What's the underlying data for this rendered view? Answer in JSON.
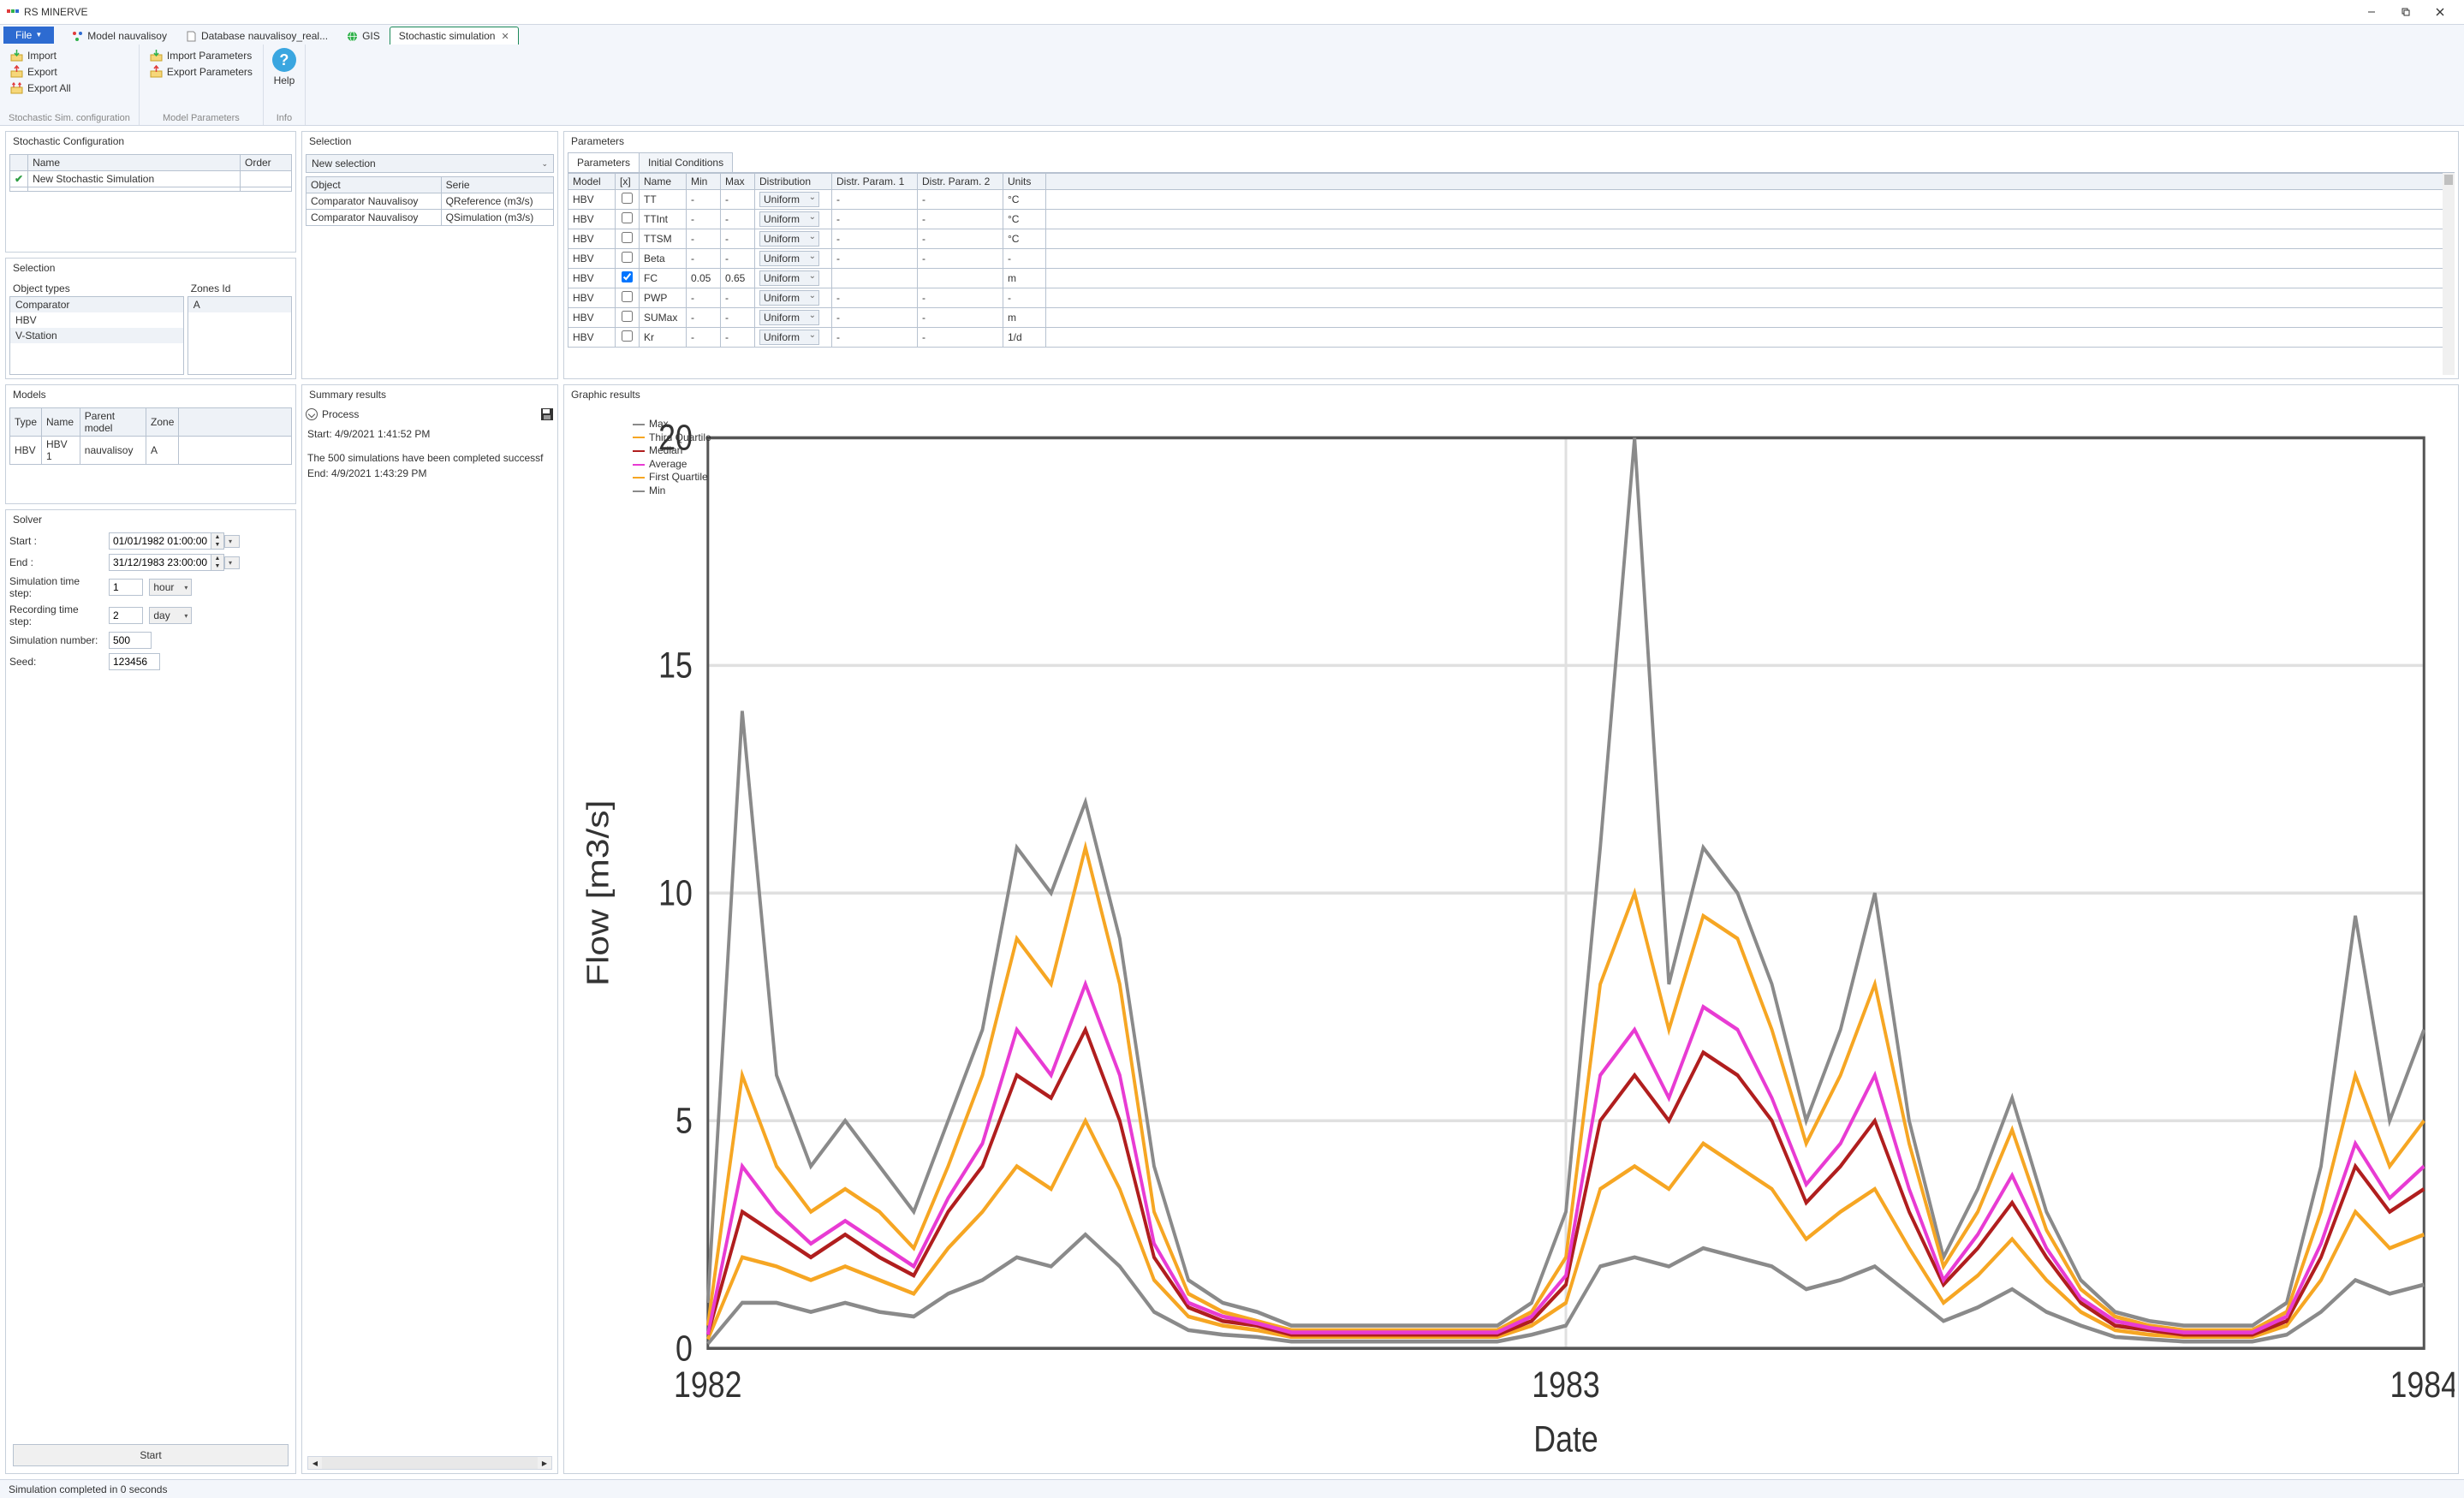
{
  "window": {
    "title": "RS MINERVE"
  },
  "file_menu": {
    "label": "File"
  },
  "tabs": [
    {
      "label": "Model nauvalisoy",
      "active": false
    },
    {
      "label": "Database nauvalisoy_real...",
      "active": false
    },
    {
      "label": "GIS",
      "active": false
    },
    {
      "label": "Stochastic simulation",
      "active": true,
      "closable": true
    }
  ],
  "ribbon": {
    "group1": {
      "items": [
        "Import",
        "Export",
        "Export All"
      ],
      "label": "Stochastic Sim. configuration"
    },
    "group2": {
      "items": [
        "Import Parameters",
        "Export Parameters"
      ],
      "label": "Model Parameters"
    },
    "group3": {
      "help": "Help",
      "label": "Info"
    }
  },
  "stochastic_config": {
    "title": "Stochastic Configuration",
    "headers": [
      "Name",
      "Order"
    ],
    "rows": [
      {
        "checked": true,
        "name": "New Stochastic Simulation",
        "order": ""
      }
    ]
  },
  "selection_panel": {
    "title": "Selection",
    "obj_label": "Object types",
    "zone_label": "Zones Id",
    "objects": [
      "Comparator",
      "HBV",
      "V-Station"
    ],
    "zones": [
      "A"
    ]
  },
  "models_panel": {
    "title": "Models",
    "headers": [
      "Type",
      "Name",
      "Parent model",
      "Zone"
    ],
    "row": {
      "type": "HBV",
      "name": "HBV 1",
      "parent": "nauvalisoy",
      "zone": "A"
    }
  },
  "solver": {
    "title": "Solver",
    "start_label": "Start :",
    "start_val": "01/01/1982 01:00:00",
    "end_label": "End :",
    "end_val": "31/12/1983 23:00:00",
    "sim_step_label": "Simulation time step:",
    "sim_step_val": "1",
    "sim_step_unit": "hour",
    "rec_step_label": "Recording time step:",
    "rec_step_val": "2",
    "rec_step_unit": "day",
    "sim_num_label": "Simulation number:",
    "sim_num_val": "500",
    "seed_label": "Seed:",
    "seed_val": "123456",
    "start_btn": "Start"
  },
  "selection_mid": {
    "title": "Selection",
    "combo": "New selection",
    "headers": [
      "Object",
      "Serie"
    ],
    "rows": [
      {
        "obj": "Comparator Nauvalisoy",
        "serie": "QReference (m3/s)"
      },
      {
        "obj": "Comparator Nauvalisoy",
        "serie": "QSimulation (m3/s)"
      }
    ]
  },
  "summary": {
    "title": "Summary results",
    "process": "Process",
    "line1": "Start: 4/9/2021 1:41:52 PM",
    "line2": "The 500 simulations have been completed successf",
    "line3": "End: 4/9/2021 1:43:29 PM"
  },
  "parameters": {
    "title": "Parameters",
    "tabs": [
      "Parameters",
      "Initial Conditions"
    ],
    "headers": [
      "Model",
      "[x]",
      "Name",
      "Min",
      "Max",
      "Distribution",
      "Distr. Param. 1",
      "Distr. Param. 2",
      "Units"
    ],
    "rows": [
      {
        "model": "HBV",
        "x": false,
        "name": "TT",
        "min": "-",
        "max": "-",
        "dist": "Uniform",
        "p1": "-",
        "p2": "-",
        "units": "°C"
      },
      {
        "model": "HBV",
        "x": false,
        "name": "TTInt",
        "min": "-",
        "max": "-",
        "dist": "Uniform",
        "p1": "-",
        "p2": "-",
        "units": "°C"
      },
      {
        "model": "HBV",
        "x": false,
        "name": "TTSM",
        "min": "-",
        "max": "-",
        "dist": "Uniform",
        "p1": "-",
        "p2": "-",
        "units": "°C"
      },
      {
        "model": "HBV",
        "x": false,
        "name": "Beta",
        "min": "-",
        "max": "-",
        "dist": "Uniform",
        "p1": "-",
        "p2": "-",
        "units": "-"
      },
      {
        "model": "HBV",
        "x": true,
        "name": "FC",
        "min": "0.05",
        "max": "0.65",
        "dist": "Uniform",
        "p1": "",
        "p2": "",
        "units": "m"
      },
      {
        "model": "HBV",
        "x": false,
        "name": "PWP",
        "min": "-",
        "max": "-",
        "dist": "Uniform",
        "p1": "-",
        "p2": "-",
        "units": "-"
      },
      {
        "model": "HBV",
        "x": false,
        "name": "SUMax",
        "min": "-",
        "max": "-",
        "dist": "Uniform",
        "p1": "-",
        "p2": "-",
        "units": "m"
      },
      {
        "model": "HBV",
        "x": false,
        "name": "Kr",
        "min": "-",
        "max": "-",
        "dist": "Uniform",
        "p1": "-",
        "p2": "-",
        "units": "1/d"
      }
    ]
  },
  "graphic": {
    "title": "Graphic results",
    "ylabel": "Flow [m3/s]",
    "xlabel": "Date",
    "xticks": [
      "1982",
      "1983",
      "1984"
    ],
    "yticks": [
      0,
      5,
      10,
      15,
      20
    ],
    "ylim": [
      0,
      20
    ],
    "legend": [
      {
        "label": "Max",
        "color": "#8a8a8a"
      },
      {
        "label": "Third Quartile",
        "color": "#f6a623"
      },
      {
        "label": "Median",
        "color": "#b01e1e"
      },
      {
        "label": "Average",
        "color": "#e83bd3"
      },
      {
        "label": "First Quartile",
        "color": "#f6a623"
      },
      {
        "label": "Min",
        "color": "#8a8a8a"
      }
    ],
    "series": {
      "x": [
        0,
        2,
        4,
        6,
        8,
        10,
        12,
        14,
        16,
        18,
        20,
        22,
        24,
        26,
        28,
        30,
        32,
        34,
        36,
        38,
        40,
        42,
        44,
        46,
        48,
        50,
        52,
        54,
        56,
        58,
        60,
        62,
        64,
        66,
        68,
        70,
        72,
        74,
        76,
        78,
        80,
        82,
        84,
        86,
        88,
        90,
        92,
        94,
        96,
        98,
        100
      ],
      "max": [
        1,
        14,
        6,
        4,
        5,
        4,
        3,
        5,
        7,
        11,
        10,
        12,
        9,
        4,
        1.5,
        1,
        0.8,
        0.5,
        0.5,
        0.5,
        0.5,
        0.5,
        0.5,
        0.5,
        1,
        3,
        11,
        20,
        8,
        11,
        10,
        8,
        5,
        7,
        10,
        5,
        2,
        3.5,
        5.5,
        3,
        1.5,
        0.8,
        0.6,
        0.5,
        0.5,
        0.5,
        1,
        4,
        9.5,
        5,
        7
      ],
      "q3": [
        0.5,
        6,
        4,
        3,
        3.5,
        3,
        2.2,
        4,
        6,
        9,
        8,
        11,
        8,
        3,
        1.2,
        0.8,
        0.6,
        0.4,
        0.4,
        0.4,
        0.4,
        0.4,
        0.4,
        0.4,
        0.8,
        2,
        8,
        10,
        7,
        9.5,
        9,
        7,
        4.5,
        6,
        8,
        4.5,
        1.8,
        3,
        4.8,
        2.6,
        1.3,
        0.7,
        0.5,
        0.4,
        0.4,
        0.4,
        0.8,
        3,
        6,
        4,
        5
      ],
      "median": [
        0.3,
        3,
        2.5,
        2,
        2.5,
        2,
        1.6,
        3,
        4,
        6,
        5.5,
        7,
        5,
        2,
        0.9,
        0.6,
        0.5,
        0.3,
        0.3,
        0.3,
        0.3,
        0.3,
        0.3,
        0.3,
        0.6,
        1.4,
        5,
        6,
        5,
        6.5,
        6,
        5,
        3.2,
        4,
        5,
        3,
        1.4,
        2.2,
        3.2,
        2,
        1,
        0.5,
        0.4,
        0.3,
        0.3,
        0.3,
        0.6,
        2,
        4,
        3,
        3.5
      ],
      "avg": [
        0.3,
        4,
        3,
        2.3,
        2.8,
        2.3,
        1.8,
        3.3,
        4.5,
        7,
        6,
        8,
        6,
        2.3,
        1,
        0.7,
        0.55,
        0.35,
        0.35,
        0.35,
        0.35,
        0.35,
        0.35,
        0.35,
        0.7,
        1.6,
        6,
        7,
        5.5,
        7.5,
        7,
        5.5,
        3.6,
        4.5,
        6,
        3.5,
        1.5,
        2.5,
        3.8,
        2.2,
        1.1,
        0.6,
        0.45,
        0.35,
        0.35,
        0.35,
        0.7,
        2.3,
        4.5,
        3.3,
        4
      ],
      "q1": [
        0.2,
        2,
        1.8,
        1.5,
        1.8,
        1.5,
        1.2,
        2.2,
        3,
        4,
        3.5,
        5,
        3.5,
        1.5,
        0.7,
        0.5,
        0.4,
        0.25,
        0.25,
        0.25,
        0.25,
        0.25,
        0.25,
        0.25,
        0.5,
        1,
        3.5,
        4,
        3.5,
        4.5,
        4,
        3.5,
        2.4,
        3,
        3.5,
        2.2,
        1,
        1.6,
        2.4,
        1.5,
        0.8,
        0.4,
        0.3,
        0.25,
        0.25,
        0.25,
        0.5,
        1.5,
        3,
        2.2,
        2.5
      ],
      "min": [
        0.1,
        1,
        1,
        0.8,
        1,
        0.8,
        0.7,
        1.2,
        1.5,
        2,
        1.8,
        2.5,
        1.8,
        0.8,
        0.4,
        0.3,
        0.25,
        0.15,
        0.15,
        0.15,
        0.15,
        0.15,
        0.15,
        0.15,
        0.3,
        0.5,
        1.8,
        2,
        1.8,
        2.2,
        2,
        1.8,
        1.3,
        1.5,
        1.8,
        1.2,
        0.6,
        0.9,
        1.3,
        0.8,
        0.5,
        0.25,
        0.2,
        0.15,
        0.15,
        0.15,
        0.3,
        0.8,
        1.5,
        1.2,
        1.4
      ]
    },
    "colors": {
      "max": "#8a8a8a",
      "q3": "#f6a623",
      "median": "#b01e1e",
      "avg": "#e83bd3",
      "q1": "#f6a623",
      "min": "#8a8a8a",
      "grid": "#e0e0e0",
      "axis": "#555555",
      "bg": "#ffffff"
    },
    "stroke_width": 1.3
  },
  "statusbar": {
    "text": "Simulation completed in 0 seconds"
  }
}
